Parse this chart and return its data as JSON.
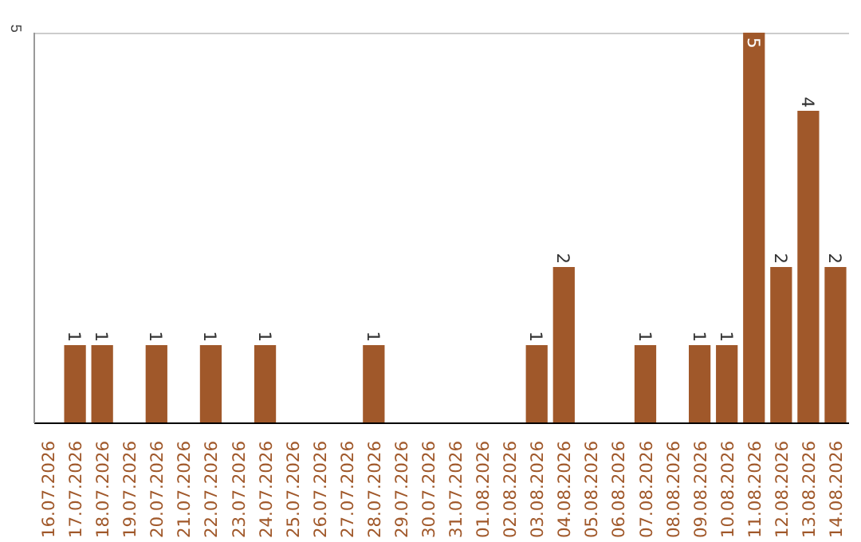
{
  "chart_data": {
    "type": "bar",
    "categories": [
      "16.07.2026",
      "17.07.2026",
      "18.07.2026",
      "19.07.2026",
      "20.07.2026",
      "21.07.2026",
      "22.07.2026",
      "23.07.2026",
      "24.07.2026",
      "25.07.2026",
      "26.07.2026",
      "27.07.2026",
      "28.07.2026",
      "29.07.2026",
      "30.07.2026",
      "31.07.2026",
      "01.08.2026",
      "02.08.2026",
      "03.08.2026",
      "04.08.2026",
      "05.08.2026",
      "06.08.2026",
      "07.08.2026",
      "08.08.2026",
      "09.08.2026",
      "10.08.2026",
      "11.08.2026",
      "12.08.2026",
      "13.08.2026",
      "14.08.2026"
    ],
    "values": [
      0,
      1,
      1,
      0,
      1,
      0,
      1,
      0,
      1,
      0,
      0,
      0,
      1,
      0,
      0,
      0,
      0,
      0,
      1,
      2,
      0,
      0,
      1,
      0,
      1,
      1,
      5,
      2,
      4,
      2
    ],
    "value_labels": [
      null,
      "1",
      "1",
      null,
      "1",
      null,
      "1",
      null,
      "1",
      null,
      null,
      null,
      "1",
      null,
      null,
      null,
      null,
      null,
      "1",
      "2",
      null,
      null,
      "1",
      null,
      "1",
      "1",
      "5",
      "2",
      "4",
      "2"
    ],
    "color": "#a0582a",
    "ylim": [
      0,
      5
    ],
    "yticks": [
      5
    ],
    "ref_lines": [
      {
        "axis": "y",
        "value": 5,
        "color": "#cccccc"
      }
    ]
  }
}
